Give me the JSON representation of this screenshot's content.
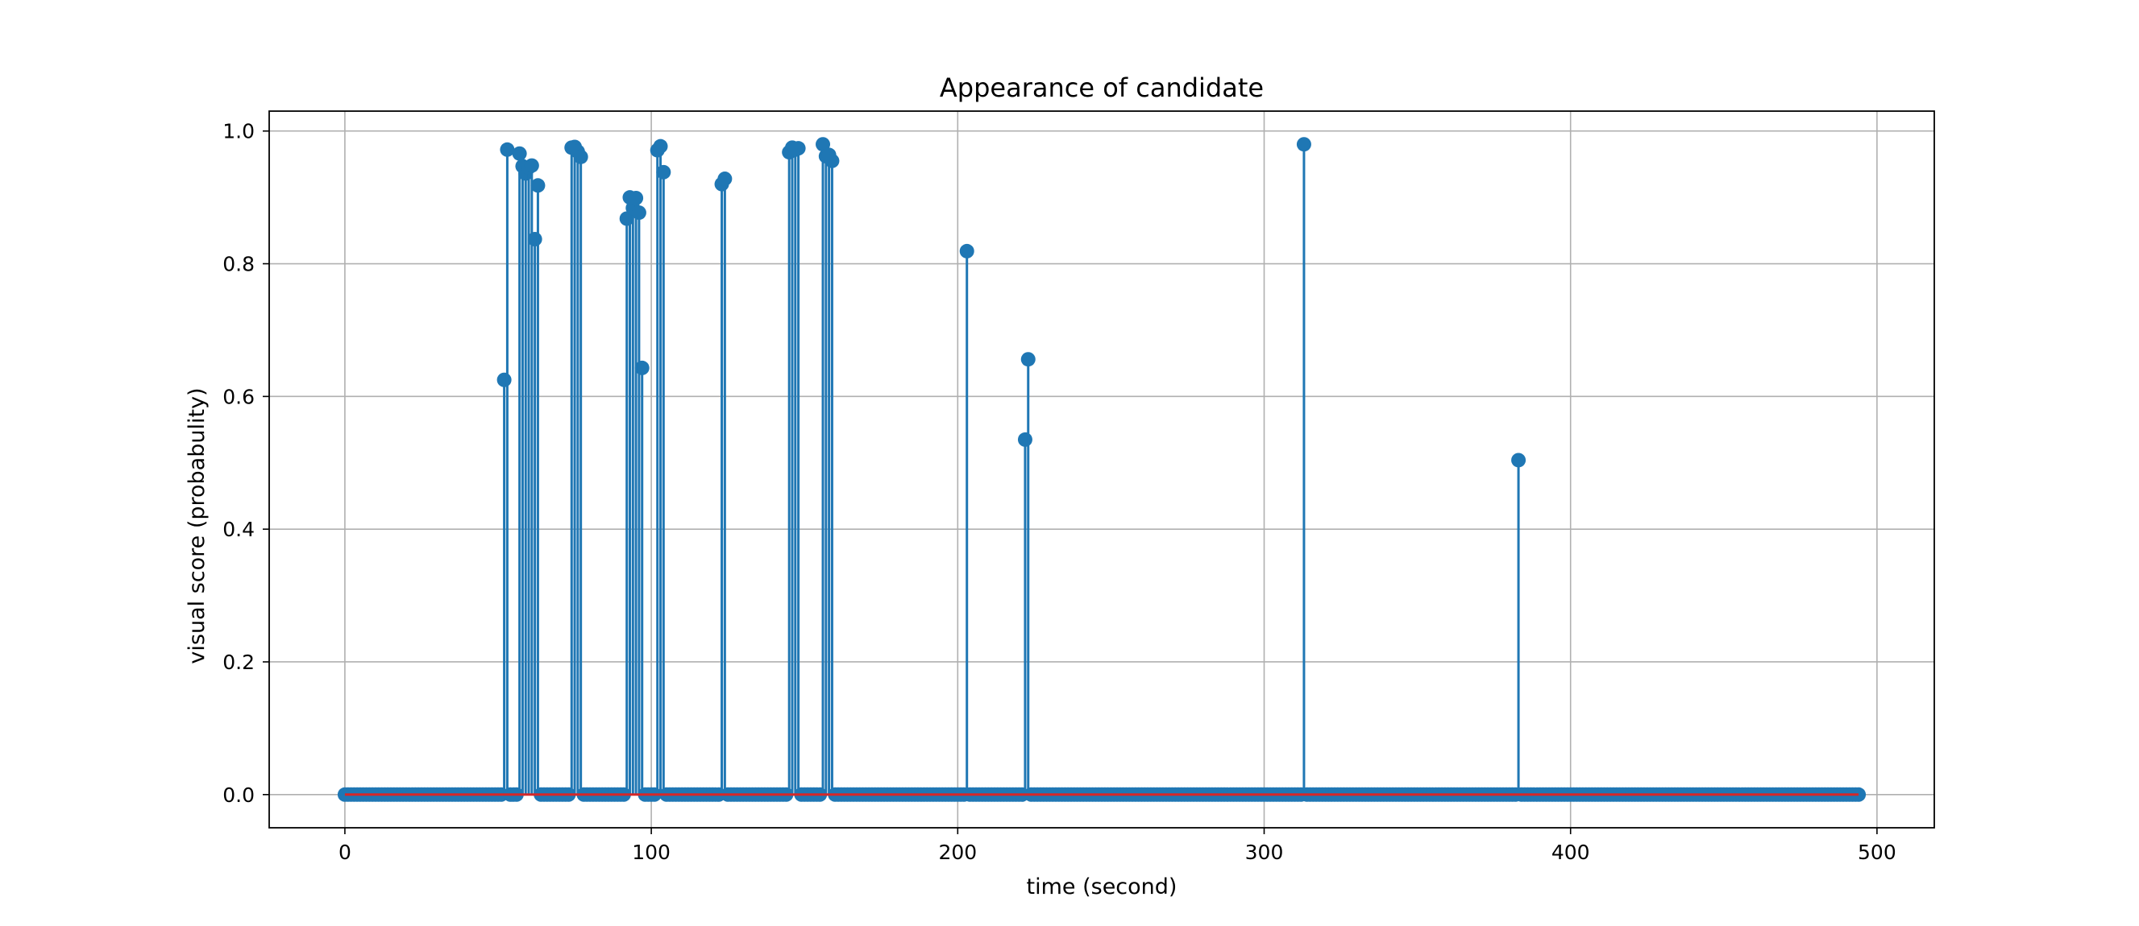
{
  "chart_data": {
    "type": "stem",
    "title": "Appearance of candidate",
    "xlabel": "time (second)",
    "ylabel": "visual score (probabulity)",
    "xlim": [
      -24.7,
      518.7
    ],
    "ylim": [
      -0.05,
      1.03
    ],
    "xticks": [
      0,
      100,
      200,
      300,
      400,
      500
    ],
    "yticks": [
      0.0,
      0.2,
      0.4,
      0.6,
      0.8,
      1.0
    ],
    "xtick_labels": [
      "0",
      "100",
      "200",
      "300",
      "400",
      "500"
    ],
    "ytick_labels": [
      "0.0",
      "0.2",
      "0.4",
      "0.6",
      "0.8",
      "1.0"
    ],
    "grid": true,
    "baseline": 0,
    "x_start": 0,
    "x_end": 494,
    "x_step": 1,
    "nonzero_points": [
      {
        "x": 52,
        "y": 0.625
      },
      {
        "x": 53,
        "y": 0.972
      },
      {
        "x": 57,
        "y": 0.966
      },
      {
        "x": 58,
        "y": 0.947
      },
      {
        "x": 59,
        "y": 0.936
      },
      {
        "x": 60,
        "y": 0.945
      },
      {
        "x": 61,
        "y": 0.948
      },
      {
        "x": 62,
        "y": 0.837
      },
      {
        "x": 63,
        "y": 0.918
      },
      {
        "x": 74,
        "y": 0.975
      },
      {
        "x": 75,
        "y": 0.976
      },
      {
        "x": 76,
        "y": 0.969
      },
      {
        "x": 77,
        "y": 0.961
      },
      {
        "x": 92,
        "y": 0.868
      },
      {
        "x": 93,
        "y": 0.9
      },
      {
        "x": 94,
        "y": 0.884
      },
      {
        "x": 95,
        "y": 0.899
      },
      {
        "x": 96,
        "y": 0.877
      },
      {
        "x": 97,
        "y": 0.643
      },
      {
        "x": 102,
        "y": 0.971
      },
      {
        "x": 103,
        "y": 0.977
      },
      {
        "x": 104,
        "y": 0.938
      },
      {
        "x": 123,
        "y": 0.92
      },
      {
        "x": 124,
        "y": 0.928
      },
      {
        "x": 145,
        "y": 0.968
      },
      {
        "x": 146,
        "y": 0.975
      },
      {
        "x": 147,
        "y": 0.972
      },
      {
        "x": 148,
        "y": 0.974
      },
      {
        "x": 156,
        "y": 0.98
      },
      {
        "x": 157,
        "y": 0.962
      },
      {
        "x": 158,
        "y": 0.964
      },
      {
        "x": 159,
        "y": 0.955
      },
      {
        "x": 203,
        "y": 0.819
      },
      {
        "x": 222,
        "y": 0.535
      },
      {
        "x": 223,
        "y": 0.656
      },
      {
        "x": 313,
        "y": 0.98
      },
      {
        "x": 383,
        "y": 0.504
      }
    ],
    "colors": {
      "stem": "#1f77b4",
      "baseline": "#d62728",
      "grid": "#b0b0b0",
      "axes": "#000000"
    }
  }
}
